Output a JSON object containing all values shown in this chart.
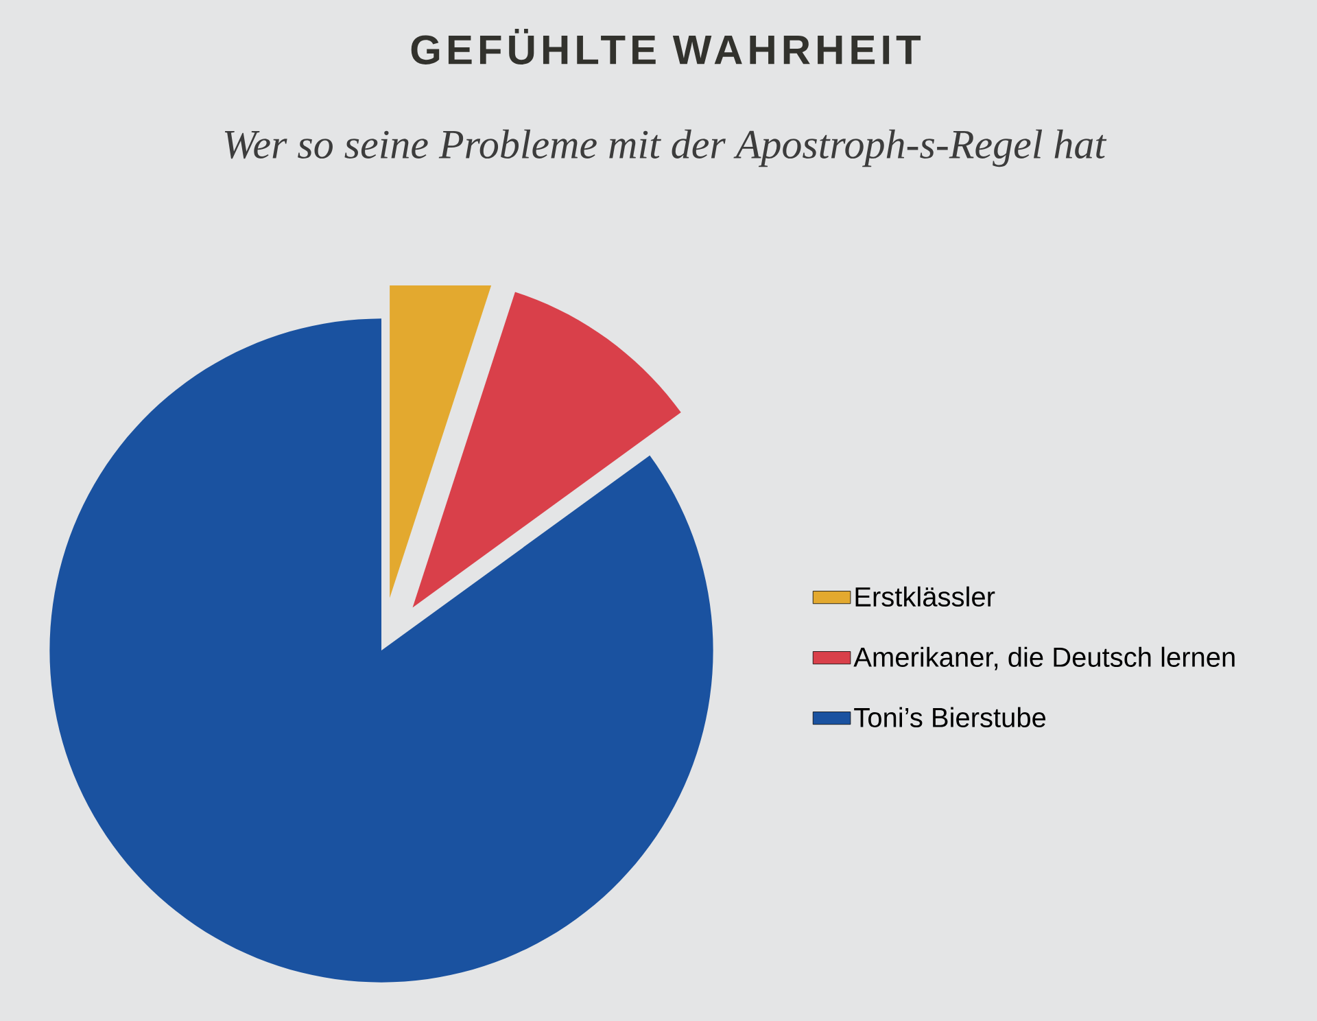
{
  "chart_data": {
    "type": "pie",
    "title": "GEFÜHLTE WAHRHEIT",
    "subtitle": "Wer so seine Probleme mit der Apostroph-s-Regel hat",
    "categories": [
      "Erstklässler",
      "Amerikaner, die Deutsch lernen",
      "Toni’s Bierstube"
    ],
    "values": [
      5,
      10,
      85
    ],
    "colors": [
      "#e3a92f",
      "#d9404a",
      "#1a52a0"
    ],
    "legend": "right"
  }
}
